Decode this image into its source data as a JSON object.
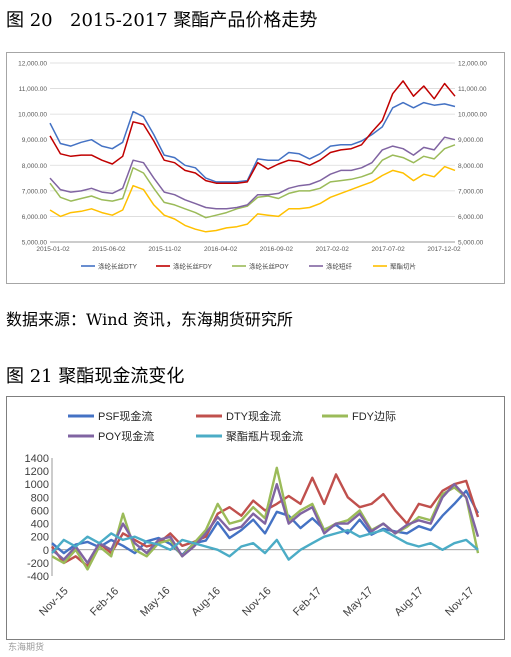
{
  "captions": {
    "fig20_number": "图 20",
    "fig20_title": "2015-2017 聚酯产品价格走势",
    "source": "数据来源：Wind 资讯，东海期货研究所",
    "fig21": "图 21 聚酯现金流变化"
  },
  "watermark": "东海期货",
  "chart_data": [
    {
      "type": "line",
      "title": "2015-2017 聚酯产品价格走势",
      "y_ticks": [
        "5,000.00",
        "6,000.00",
        "7,000.00",
        "8,000.00",
        "9,000.00",
        "10,000.00",
        "11,000.00",
        "12,000.00"
      ],
      "y2_ticks": [
        "5,000.00",
        "6,000.00",
        "7,000.00",
        "8,000.00",
        "9,000.00",
        "10,000.00",
        "11,000.00",
        "12,000.00"
      ],
      "ylim": [
        5000,
        12000
      ],
      "x_ticks": [
        "2015-01-02",
        "2015-06-02",
        "2015-11-02",
        "2016-04-02",
        "2016-09-02",
        "2017-02-02",
        "2017-07-02",
        "2017-12-02"
      ],
      "legend_position": "bottom",
      "series": [
        {
          "name": "涤纶长丝DTY",
          "color": "#4472c4",
          "x": [
            0,
            4,
            8,
            12,
            16,
            20,
            24,
            28,
            32,
            36,
            40,
            44,
            48,
            52,
            56,
            60,
            64,
            68,
            72,
            76,
            80,
            84,
            88,
            92,
            96,
            100,
            104,
            108,
            112,
            116,
            120,
            124,
            128,
            132,
            136,
            140,
            144,
            148,
            152,
            156
          ],
          "values": [
            9650,
            8850,
            8750,
            8900,
            9000,
            8750,
            8650,
            8900,
            10100,
            9900,
            9200,
            8400,
            8300,
            8000,
            7900,
            7500,
            7350,
            7350,
            7350,
            7400,
            8250,
            8200,
            8200,
            8500,
            8450,
            8250,
            8450,
            8750,
            8800,
            8800,
            8950,
            9200,
            9500,
            10250,
            10450,
            10250,
            10450,
            10350,
            10400,
            10300
          ]
        },
        {
          "name": "涤纶长丝FDY",
          "color": "#c00000",
          "x": [
            0,
            4,
            8,
            12,
            16,
            20,
            24,
            28,
            32,
            36,
            40,
            44,
            48,
            52,
            56,
            60,
            64,
            68,
            72,
            76,
            80,
            84,
            88,
            92,
            96,
            100,
            104,
            108,
            112,
            116,
            120,
            124,
            128,
            132,
            136,
            140,
            144,
            148,
            152,
            156
          ],
          "values": [
            9150,
            8450,
            8350,
            8400,
            8400,
            8200,
            8050,
            8350,
            9700,
            9600,
            8950,
            8200,
            8100,
            7800,
            7700,
            7400,
            7300,
            7300,
            7300,
            7350,
            8100,
            7850,
            8050,
            8200,
            8150,
            8000,
            8200,
            8500,
            8600,
            8650,
            8800,
            9300,
            9750,
            10800,
            11300,
            10700,
            11100,
            10600,
            11200,
            10700
          ]
        },
        {
          "name": "涤纶长丝POY",
          "color": "#9bbb59",
          "x": [
            0,
            4,
            8,
            12,
            16,
            20,
            24,
            28,
            32,
            36,
            40,
            44,
            48,
            52,
            56,
            60,
            64,
            68,
            72,
            76,
            80,
            84,
            88,
            92,
            96,
            100,
            104,
            108,
            112,
            116,
            120,
            124,
            128,
            132,
            136,
            140,
            144,
            148,
            152,
            156
          ],
          "values": [
            7300,
            6750,
            6600,
            6700,
            6800,
            6650,
            6600,
            6700,
            7900,
            7700,
            7100,
            6550,
            6450,
            6300,
            6150,
            5950,
            6050,
            6150,
            6300,
            6400,
            6750,
            6800,
            6700,
            6900,
            7000,
            7000,
            7100,
            7350,
            7400,
            7450,
            7550,
            7700,
            8200,
            8400,
            8300,
            8100,
            8350,
            8250,
            8650,
            8800
          ]
        },
        {
          "name": "涤纶短纤",
          "color": "#8064a2",
          "x": [
            0,
            4,
            8,
            12,
            16,
            20,
            24,
            28,
            32,
            36,
            40,
            44,
            48,
            52,
            56,
            60,
            64,
            68,
            72,
            76,
            80,
            84,
            88,
            92,
            96,
            100,
            104,
            108,
            112,
            116,
            120,
            124,
            128,
            132,
            136,
            140,
            144,
            148,
            152,
            156
          ],
          "values": [
            7500,
            7050,
            6950,
            7000,
            7100,
            6950,
            6900,
            7100,
            8200,
            8100,
            7500,
            6950,
            6850,
            6650,
            6500,
            6350,
            6300,
            6300,
            6350,
            6450,
            6850,
            6850,
            6900,
            7100,
            7200,
            7250,
            7400,
            7650,
            7800,
            7800,
            7900,
            8100,
            8600,
            8750,
            8650,
            8400,
            8700,
            8600,
            9100,
            9000
          ]
        },
        {
          "name": "聚酯切片",
          "color": "#ffc000",
          "x": [
            0,
            4,
            8,
            12,
            16,
            20,
            24,
            28,
            32,
            36,
            40,
            44,
            48,
            52,
            56,
            60,
            64,
            68,
            72,
            76,
            80,
            84,
            88,
            92,
            96,
            100,
            104,
            108,
            112,
            116,
            120,
            124,
            128,
            132,
            136,
            140,
            144,
            148,
            152,
            156
          ],
          "values": [
            6250,
            6000,
            6150,
            6200,
            6300,
            6150,
            6050,
            6250,
            7200,
            7050,
            6450,
            6050,
            5900,
            5650,
            5500,
            5400,
            5450,
            5550,
            5600,
            5700,
            6100,
            6050,
            6000,
            6300,
            6300,
            6350,
            6500,
            6750,
            6900,
            7050,
            7200,
            7350,
            7600,
            7800,
            7700,
            7400,
            7650,
            7550,
            7950,
            7800
          ]
        }
      ]
    },
    {
      "type": "line",
      "title": "聚酯现金流变化",
      "y_ticks": [
        "-400",
        "-200",
        "0",
        "200",
        "400",
        "600",
        "800",
        "1000",
        "1200",
        "1400"
      ],
      "ylim": [
        -400,
        1400
      ],
      "x_ticks": [
        "Nov-15",
        "Feb-16",
        "May-16",
        "Aug-16",
        "Nov-16",
        "Feb-17",
        "May-17",
        "Aug-17",
        "Nov-17"
      ],
      "legend_position": "top",
      "series": [
        {
          "name": "PSF现金流",
          "color": "#4472c4",
          "x": [
            0,
            3,
            6,
            9,
            12,
            15,
            18,
            21,
            24,
            27,
            30,
            33,
            36,
            39,
            42,
            45,
            48,
            51,
            54,
            57,
            60,
            63,
            66,
            69,
            72,
            75,
            78,
            81,
            84,
            87,
            90,
            93,
            96,
            99,
            102,
            105,
            108
          ],
          "values": [
            100,
            -50,
            80,
            120,
            40,
            150,
            60,
            -50,
            130,
            180,
            90,
            -80,
            100,
            140,
            420,
            180,
            300,
            460,
            250,
            580,
            520,
            330,
            480,
            310,
            380,
            250,
            460,
            230,
            320,
            280,
            250,
            360,
            300,
            520,
            700,
            900,
            560
          ]
        },
        {
          "name": "DTY现金流",
          "color": "#c0504d",
          "x": [
            0,
            3,
            6,
            9,
            12,
            15,
            18,
            21,
            24,
            27,
            30,
            33,
            36,
            39,
            42,
            45,
            48,
            51,
            54,
            57,
            60,
            63,
            66,
            69,
            72,
            75,
            78,
            81,
            84,
            87,
            90,
            93,
            96,
            99,
            102,
            105,
            108
          ],
          "values": [
            50,
            -200,
            -100,
            -250,
            100,
            -50,
            250,
            150,
            50,
            100,
            250,
            60,
            120,
            200,
            550,
            650,
            520,
            750,
            600,
            700,
            820,
            700,
            1100,
            700,
            1150,
            800,
            650,
            700,
            850,
            600,
            400,
            700,
            650,
            900,
            1000,
            1050,
            500
          ]
        },
        {
          "name": "FDY边际",
          "color": "#9bbb59",
          "x": [
            0,
            3,
            6,
            9,
            12,
            15,
            18,
            21,
            24,
            27,
            30,
            33,
            36,
            39,
            42,
            45,
            48,
            51,
            54,
            57,
            60,
            63,
            66,
            69,
            72,
            75,
            78,
            81,
            84,
            87,
            90,
            93,
            96,
            99,
            102,
            105,
            108
          ],
          "values": [
            -100,
            -200,
            0,
            -300,
            50,
            -100,
            550,
            0,
            -100,
            100,
            150,
            -100,
            100,
            300,
            700,
            400,
            450,
            650,
            480,
            1250,
            450,
            600,
            700,
            300,
            400,
            450,
            600,
            300,
            400,
            250,
            350,
            500,
            450,
            850,
            950,
            800,
            -50
          ]
        },
        {
          "name": "POY现金流",
          "color": "#8064a2",
          "x": [
            0,
            3,
            6,
            9,
            12,
            15,
            18,
            21,
            24,
            27,
            30,
            33,
            36,
            39,
            42,
            45,
            48,
            51,
            54,
            57,
            60,
            63,
            66,
            69,
            72,
            75,
            78,
            81,
            84,
            87,
            90,
            93,
            96,
            99,
            102,
            105,
            108
          ],
          "values": [
            0,
            -150,
            50,
            -200,
            100,
            0,
            400,
            100,
            -50,
            150,
            200,
            -100,
            50,
            250,
            500,
            300,
            350,
            550,
            400,
            1000,
            400,
            550,
            650,
            250,
            400,
            400,
            550,
            280,
            400,
            250,
            380,
            450,
            400,
            800,
            1000,
            800,
            200
          ]
        },
        {
          "name": "聚酯瓶片现金流",
          "color": "#4bacc6",
          "x": [
            0,
            3,
            6,
            9,
            12,
            15,
            18,
            21,
            24,
            27,
            30,
            33,
            36,
            39,
            42,
            45,
            48,
            51,
            54,
            57,
            60,
            63,
            66,
            69,
            72,
            75,
            78,
            81,
            84,
            87,
            90,
            93,
            96,
            99,
            102,
            105,
            108
          ],
          "values": [
            -50,
            150,
            50,
            200,
            100,
            250,
            150,
            200,
            120,
            80,
            0,
            150,
            100,
            50,
            0,
            -100,
            50,
            100,
            -50,
            150,
            -150,
            0,
            100,
            200,
            250,
            300,
            200,
            250,
            300,
            200,
            100,
            50,
            100,
            0,
            100,
            150,
            0
          ]
        }
      ]
    }
  ]
}
